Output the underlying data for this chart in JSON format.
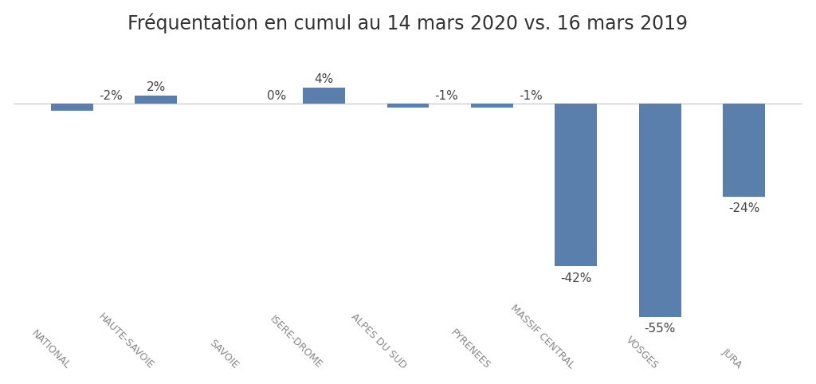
{
  "title": "Fréquentation en cumul au 14 mars 2020 vs. 16 mars 2019",
  "categories": [
    "NATIONAL",
    "HAUTE-SAVOIE",
    "SAVOIE",
    "ISERE-DROME",
    "ALPES DU SUD",
    "PYRENEES",
    "MASSIF CENTRAL",
    "VOSGES",
    "JURA"
  ],
  "values": [
    -2,
    2,
    0,
    4,
    -1,
    -1,
    -42,
    -55,
    -24
  ],
  "labels": [
    "-2%",
    "2%",
    "0%",
    "4%",
    "-1%",
    "-1%",
    "-42%",
    "-55%",
    "-24%"
  ],
  "bar_color": "#5b7fac",
  "background_color": "#ffffff",
  "title_fontsize": 17,
  "label_fontsize": 11,
  "tick_fontsize": 9,
  "ylim": [
    -65,
    15
  ]
}
